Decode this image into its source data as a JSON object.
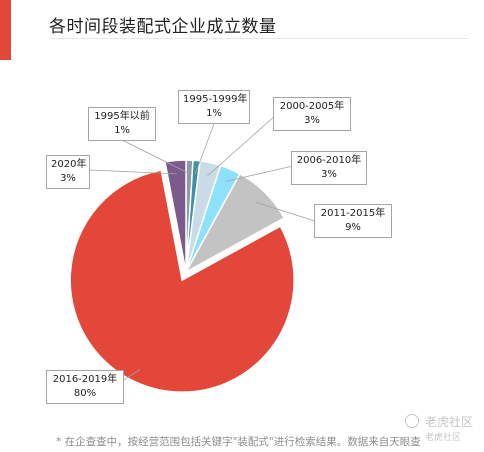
{
  "header": {
    "title": "各时间段装配式企业成立数量",
    "accent_color": "#e3473a"
  },
  "chart_data": {
    "type": "pie",
    "slices": [
      {
        "label": "1995年以前",
        "value": 1,
        "value_label": "1%",
        "color": "#8e9aa6"
      },
      {
        "label": "1995-1999年",
        "value": 1,
        "value_label": "1%",
        "color": "#3b93a5"
      },
      {
        "label": "2000-2005年",
        "value": 3,
        "value_label": "3%",
        "color": "#c9dbe7"
      },
      {
        "label": "2006-2010年",
        "value": 3,
        "value_label": "3%",
        "color": "#8ee1fb"
      },
      {
        "label": "2011-2015年",
        "value": 9,
        "value_label": "9%",
        "color": "#c3c3c3"
      },
      {
        "label": "2016-2019年",
        "value": 80,
        "value_label": "80%",
        "color": "#e3473a"
      },
      {
        "label": "2020年",
        "value": 3,
        "value_label": "3%",
        "color": "#7c5a8b"
      }
    ],
    "start_angle_deg": 0,
    "direction": "clockwise",
    "exploded_slice": "2016-2019年",
    "label_style": "callout boxes with leader lines"
  },
  "footnote": "* 在企查查中，按经营范围包括关键字\"装配式\"进行检索结果。数据来自天眼查",
  "watermark": {
    "name": "老虎社区",
    "sub": "老虎社区"
  }
}
